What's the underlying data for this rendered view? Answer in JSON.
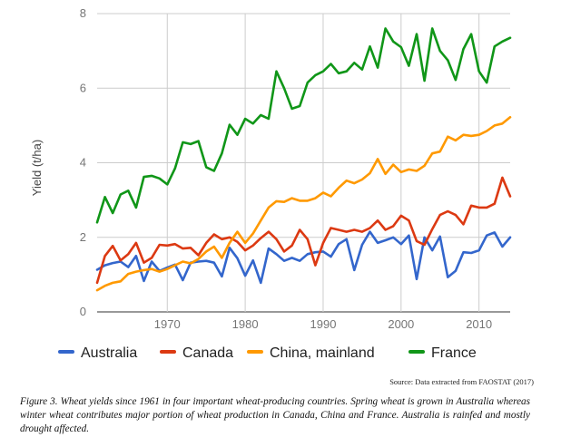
{
  "chart_data": {
    "type": "line",
    "title": "",
    "xlabel": "",
    "ylabel": "Yield (t/ha)",
    "xlim": [
      1961,
      2014
    ],
    "ylim": [
      0,
      8
    ],
    "xticks": [
      1970,
      1980,
      1990,
      2000,
      2010
    ],
    "yticks": [
      0,
      2,
      4,
      6,
      8
    ],
    "grid": true,
    "legend_position": "bottom",
    "x": [
      1961,
      1962,
      1963,
      1964,
      1965,
      1966,
      1967,
      1968,
      1969,
      1970,
      1971,
      1972,
      1973,
      1974,
      1975,
      1976,
      1977,
      1978,
      1979,
      1980,
      1981,
      1982,
      1983,
      1984,
      1985,
      1986,
      1987,
      1988,
      1989,
      1990,
      1991,
      1992,
      1993,
      1994,
      1995,
      1996,
      1997,
      1998,
      1999,
      2000,
      2001,
      2002,
      2003,
      2004,
      2005,
      2006,
      2007,
      2008,
      2009,
      2010,
      2011,
      2012,
      2013,
      2014
    ],
    "series": [
      {
        "name": "Australia",
        "color": "#3366cc",
        "values": [
          1.13,
          1.25,
          1.31,
          1.35,
          1.2,
          1.5,
          0.83,
          1.35,
          1.1,
          1.19,
          1.27,
          0.85,
          1.32,
          1.35,
          1.37,
          1.32,
          0.95,
          1.72,
          1.44,
          0.97,
          1.38,
          0.78,
          1.7,
          1.55,
          1.37,
          1.45,
          1.37,
          1.55,
          1.6,
          1.62,
          1.48,
          1.82,
          1.95,
          1.12,
          1.8,
          2.15,
          1.85,
          1.92,
          2.0,
          1.82,
          2.05,
          0.88,
          2.0,
          1.65,
          2.02,
          0.93,
          1.1,
          1.6,
          1.58,
          1.65,
          2.05,
          2.13,
          1.75,
          2.0
        ]
      },
      {
        "name": "Canada",
        "color": "#dc3912",
        "values": [
          0.78,
          1.5,
          1.77,
          1.38,
          1.55,
          1.85,
          1.32,
          1.45,
          1.8,
          1.78,
          1.82,
          1.7,
          1.72,
          1.52,
          1.85,
          2.08,
          1.95,
          2.0,
          1.88,
          1.65,
          1.78,
          1.98,
          2.15,
          1.95,
          1.62,
          1.78,
          2.2,
          1.95,
          1.25,
          1.85,
          2.25,
          2.2,
          2.15,
          2.2,
          2.15,
          2.25,
          2.45,
          2.2,
          2.3,
          2.58,
          2.45,
          1.9,
          1.8,
          2.22,
          2.6,
          2.7,
          2.6,
          2.35,
          2.85,
          2.8,
          2.8,
          2.9,
          3.6,
          3.1
        ]
      },
      {
        "name": "China, mainland",
        "color": "#ff9900",
        "values": [
          0.58,
          0.7,
          0.78,
          0.82,
          1.02,
          1.08,
          1.12,
          1.15,
          1.08,
          1.15,
          1.25,
          1.35,
          1.3,
          1.42,
          1.62,
          1.75,
          1.45,
          1.85,
          2.15,
          1.85,
          2.1,
          2.45,
          2.8,
          2.97,
          2.95,
          3.05,
          2.98,
          2.98,
          3.05,
          3.2,
          3.1,
          3.33,
          3.52,
          3.45,
          3.55,
          3.72,
          4.1,
          3.7,
          3.95,
          3.75,
          3.82,
          3.78,
          3.92,
          4.25,
          4.3,
          4.7,
          4.6,
          4.75,
          4.72,
          4.75,
          4.85,
          5.0,
          5.05,
          5.22
        ]
      },
      {
        "name": "France",
        "color": "#109618",
        "values": [
          2.4,
          3.08,
          2.65,
          3.15,
          3.25,
          2.8,
          3.62,
          3.65,
          3.58,
          3.42,
          3.85,
          4.55,
          4.5,
          4.58,
          3.88,
          3.78,
          4.25,
          5.02,
          4.75,
          5.18,
          5.05,
          5.28,
          5.18,
          6.45,
          6.0,
          5.45,
          5.52,
          6.15,
          6.35,
          6.45,
          6.65,
          6.4,
          6.45,
          6.68,
          6.5,
          7.12,
          6.55,
          7.6,
          7.25,
          7.1,
          6.6,
          7.45,
          6.2,
          7.6,
          7.0,
          6.75,
          6.22,
          7.05,
          7.45,
          6.45,
          6.15,
          7.12,
          7.25,
          7.35
        ]
      }
    ]
  },
  "source": "Source: Data extracted from FAOSTAT (2017)",
  "caption": "Figure 3. Wheat yields since 1961 in four important wheat-producing countries. Spring wheat is grown in Australia whereas winter wheat contributes major portion of wheat production in Canada, China and France. Australia is rainfed and mostly drought affected."
}
